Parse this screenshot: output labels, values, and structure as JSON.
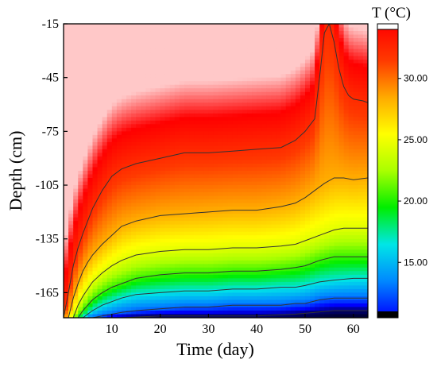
{
  "chart_data": {
    "type": "heatmap",
    "title": "",
    "xlabel": "Time (day)",
    "ylabel": "Depth (cm)",
    "xlim": [
      0,
      63
    ],
    "ylim": [
      -179,
      -15
    ],
    "x_ticks": [
      10,
      20,
      30,
      40,
      50,
      60
    ],
    "x_tick_labels": [
      "10",
      "20",
      "30",
      "40",
      "50",
      "60"
    ],
    "y_ticks": [
      -15,
      -45,
      -75,
      -105,
      -135,
      -165
    ],
    "y_tick_labels": [
      "-15",
      "-45",
      "-75",
      "-105",
      "-135",
      "-165"
    ],
    "grid": false,
    "colorbar": {
      "title": "T (°C)",
      "range": [
        11,
        34
      ],
      "ticks": [
        15,
        20,
        25,
        30
      ],
      "tick_labels": [
        "15.00",
        "20.00",
        "25.00",
        "30.00"
      ],
      "colors": [
        "#000000",
        "#0000ff",
        "#0088ff",
        "#00e6e6",
        "#00ee00",
        "#aaff00",
        "#ffff00",
        "#ffaa00",
        "#ff3a00",
        "#ff0000",
        "#ffffff"
      ]
    },
    "isotherms": [
      {
        "level": 30,
        "points": [
          [
            0,
            -179
          ],
          [
            1,
            -165
          ],
          [
            2,
            -150
          ],
          [
            3,
            -140
          ],
          [
            4,
            -132
          ],
          [
            5,
            -125
          ],
          [
            6,
            -118
          ],
          [
            8,
            -108
          ],
          [
            10,
            -100
          ],
          [
            12,
            -96
          ],
          [
            15,
            -93
          ],
          [
            20,
            -90
          ],
          [
            25,
            -87
          ],
          [
            30,
            -87
          ],
          [
            35,
            -86
          ],
          [
            40,
            -85
          ],
          [
            45,
            -84
          ],
          [
            48,
            -80
          ],
          [
            50,
            -75
          ],
          [
            52,
            -68
          ],
          [
            53,
            -45
          ],
          [
            54,
            -20
          ],
          [
            55,
            -15
          ],
          [
            56,
            -25
          ],
          [
            57,
            -40
          ],
          [
            58,
            -50
          ],
          [
            59,
            -55
          ],
          [
            60,
            -57
          ],
          [
            62,
            -58
          ],
          [
            63,
            -59
          ]
        ]
      },
      {
        "level": 27,
        "points": [
          [
            1,
            -179
          ],
          [
            2,
            -168
          ],
          [
            3,
            -160
          ],
          [
            4,
            -153
          ],
          [
            5,
            -148
          ],
          [
            6,
            -144
          ],
          [
            8,
            -138
          ],
          [
            10,
            -133
          ],
          [
            12,
            -128
          ],
          [
            15,
            -125
          ],
          [
            20,
            -122
          ],
          [
            25,
            -121
          ],
          [
            30,
            -120
          ],
          [
            35,
            -119
          ],
          [
            40,
            -119
          ],
          [
            45,
            -117
          ],
          [
            48,
            -115
          ],
          [
            50,
            -112
          ],
          [
            52,
            -108
          ],
          [
            54,
            -104
          ],
          [
            56,
            -101
          ],
          [
            58,
            -101
          ],
          [
            60,
            -102
          ],
          [
            63,
            -101
          ]
        ]
      },
      {
        "level": 24,
        "points": [
          [
            2,
            -179
          ],
          [
            3,
            -172
          ],
          [
            4,
            -167
          ],
          [
            5,
            -163
          ],
          [
            6,
            -159
          ],
          [
            8,
            -154
          ],
          [
            10,
            -150
          ],
          [
            12,
            -147
          ],
          [
            15,
            -144
          ],
          [
            20,
            -142
          ],
          [
            25,
            -141
          ],
          [
            30,
            -141
          ],
          [
            35,
            -140
          ],
          [
            40,
            -140
          ],
          [
            45,
            -139
          ],
          [
            48,
            -138
          ],
          [
            50,
            -136
          ],
          [
            53,
            -133
          ],
          [
            56,
            -130
          ],
          [
            58,
            -129
          ],
          [
            60,
            -129
          ],
          [
            63,
            -129
          ]
        ]
      },
      {
        "level": 21,
        "points": [
          [
            3,
            -179
          ],
          [
            4,
            -175
          ],
          [
            5,
            -172
          ],
          [
            6,
            -169
          ],
          [
            8,
            -165
          ],
          [
            10,
            -162
          ],
          [
            12,
            -160
          ],
          [
            15,
            -157
          ],
          [
            20,
            -155
          ],
          [
            25,
            -154
          ],
          [
            30,
            -154
          ],
          [
            35,
            -153
          ],
          [
            40,
            -153
          ],
          [
            45,
            -152
          ],
          [
            48,
            -151
          ],
          [
            50,
            -150
          ],
          [
            53,
            -147
          ],
          [
            56,
            -145
          ],
          [
            58,
            -145
          ],
          [
            60,
            -145
          ],
          [
            63,
            -145
          ]
        ]
      },
      {
        "level": 18,
        "points": [
          [
            4,
            -179
          ],
          [
            5,
            -177
          ],
          [
            6,
            -175
          ],
          [
            8,
            -172
          ],
          [
            10,
            -170
          ],
          [
            12,
            -168
          ],
          [
            15,
            -166
          ],
          [
            20,
            -165
          ],
          [
            25,
            -164
          ],
          [
            30,
            -164
          ],
          [
            35,
            -163
          ],
          [
            40,
            -163
          ],
          [
            45,
            -162
          ],
          [
            48,
            -162
          ],
          [
            50,
            -161
          ],
          [
            53,
            -159
          ],
          [
            56,
            -158
          ],
          [
            60,
            -157
          ],
          [
            63,
            -157
          ]
        ]
      },
      {
        "level": 15,
        "points": [
          [
            6,
            -179
          ],
          [
            8,
            -178
          ],
          [
            10,
            -177
          ],
          [
            12,
            -176
          ],
          [
            15,
            -175
          ],
          [
            20,
            -174
          ],
          [
            25,
            -173
          ],
          [
            30,
            -173
          ],
          [
            35,
            -172
          ],
          [
            40,
            -172
          ],
          [
            45,
            -172
          ],
          [
            48,
            -171
          ],
          [
            50,
            -171
          ],
          [
            53,
            -169
          ],
          [
            56,
            -168
          ],
          [
            60,
            -168
          ],
          [
            63,
            -168
          ]
        ]
      },
      {
        "level": 12,
        "points": [
          [
            12,
            -179
          ],
          [
            20,
            -178
          ],
          [
            30,
            -178
          ],
          [
            40,
            -178
          ],
          [
            48,
            -177
          ],
          [
            52,
            -176
          ],
          [
            56,
            -175
          ],
          [
            60,
            -175
          ],
          [
            63,
            -175
          ]
        ]
      }
    ]
  }
}
